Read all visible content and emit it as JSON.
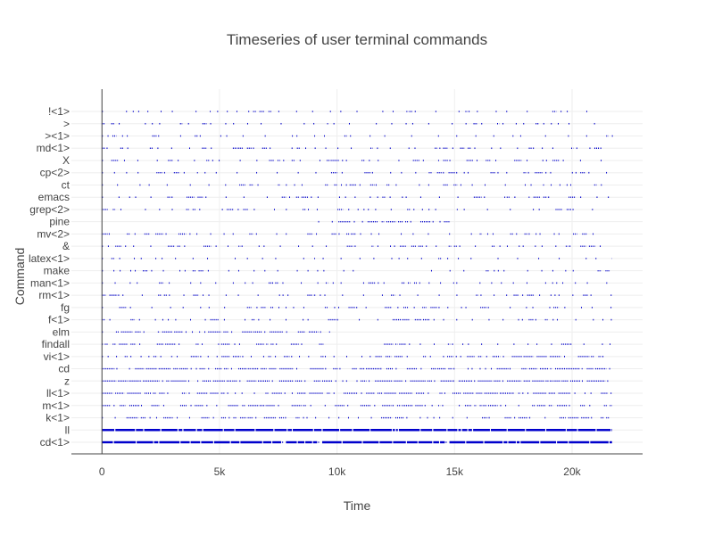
{
  "chart_data": {
    "type": "scatter",
    "title": "Timeseries of user terminal commands",
    "xlabel": "Time",
    "ylabel": "Command",
    "xlim": [
      -1300,
      23000
    ],
    "x_ticks": [
      0,
      5000,
      10000,
      15000,
      20000
    ],
    "x_tick_labels": [
      "0",
      "5k",
      "10k",
      "15k",
      "20k"
    ],
    "categories": [
      "cd<1>",
      "ll",
      "k<1>",
      "m<1>",
      "ll<1>",
      "z",
      "cd",
      "vi<1>",
      "findall",
      "elm",
      "f<1>",
      "fg",
      "rm<1>",
      "man<1>",
      "make",
      "latex<1>",
      "&",
      "mv<2>",
      "pine",
      "grep<2>",
      "emacs",
      "ct",
      "cp<2>",
      "X",
      "md<1>",
      "><1>",
      ">",
      "!<1>"
    ],
    "marker_color": "#0000cc",
    "grid": true,
    "legend": "none",
    "series": [
      {
        "command": "cd<1>",
        "active": [
          [
            0,
            21700
          ]
        ],
        "density": 0.98,
        "seed": 1
      },
      {
        "command": "ll",
        "active": [
          [
            0,
            21700
          ]
        ],
        "density": 0.97,
        "seed": 2
      },
      {
        "command": "k<1>",
        "active": [
          [
            0,
            21700
          ]
        ],
        "density": 0.55,
        "seed": 3
      },
      {
        "command": "m<1>",
        "active": [
          [
            0,
            21700
          ]
        ],
        "density": 0.5,
        "seed": 4
      },
      {
        "command": "ll<1>",
        "active": [
          [
            0,
            21700
          ]
        ],
        "density": 0.6,
        "seed": 5
      },
      {
        "command": "z",
        "active": [
          [
            0,
            21700
          ]
        ],
        "density": 0.75,
        "seed": 6
      },
      {
        "command": "cd",
        "active": [
          [
            0,
            21700
          ]
        ],
        "density": 0.6,
        "seed": 7
      },
      {
        "command": "vi<1>",
        "active": [
          [
            0,
            21700
          ]
        ],
        "density": 0.5,
        "seed": 8
      },
      {
        "command": "findall",
        "active": [
          [
            0,
            9500
          ],
          [
            12000,
            21700
          ]
        ],
        "density": 0.45,
        "seed": 9
      },
      {
        "command": "elm",
        "active": [
          [
            0,
            9700
          ]
        ],
        "density": 0.6,
        "seed": 10
      },
      {
        "command": "f<1>",
        "active": [
          [
            0,
            21700
          ]
        ],
        "density": 0.35,
        "seed": 11
      },
      {
        "command": "fg",
        "active": [
          [
            0,
            21700
          ]
        ],
        "density": 0.3,
        "seed": 12
      },
      {
        "command": "rm<1>",
        "active": [
          [
            0,
            21700
          ]
        ],
        "density": 0.35,
        "seed": 13
      },
      {
        "command": "man<1>",
        "active": [
          [
            0,
            21700
          ]
        ],
        "density": 0.3,
        "seed": 14
      },
      {
        "command": "make",
        "active": [
          [
            0,
            11000
          ],
          [
            14000,
            21700
          ]
        ],
        "density": 0.2,
        "seed": 15
      },
      {
        "command": "latex<1>",
        "active": [
          [
            0,
            21700
          ]
        ],
        "density": 0.12,
        "seed": 16
      },
      {
        "command": "&",
        "active": [
          [
            0,
            21700
          ]
        ],
        "density": 0.3,
        "seed": 17
      },
      {
        "command": "mv<2>",
        "active": [
          [
            0,
            21700
          ]
        ],
        "density": 0.3,
        "seed": 18
      },
      {
        "command": "pine",
        "active": [
          [
            9200,
            14800
          ]
        ],
        "density": 0.6,
        "seed": 19
      },
      {
        "command": "grep<2>",
        "active": [
          [
            0,
            21700
          ]
        ],
        "density": 0.25,
        "seed": 20
      },
      {
        "command": "emacs",
        "active": [
          [
            0,
            21700
          ]
        ],
        "density": 0.3,
        "seed": 21
      },
      {
        "command": "ct",
        "active": [
          [
            0,
            21700
          ]
        ],
        "density": 0.25,
        "seed": 22
      },
      {
        "command": "cp<2>",
        "active": [
          [
            0,
            21700
          ]
        ],
        "density": 0.3,
        "seed": 23
      },
      {
        "command": "X",
        "active": [
          [
            0,
            21700
          ]
        ],
        "density": 0.35,
        "seed": 24
      },
      {
        "command": "md<1>",
        "active": [
          [
            0,
            21700
          ]
        ],
        "density": 0.3,
        "seed": 25
      },
      {
        "command": "><1>",
        "active": [
          [
            0,
            21700
          ]
        ],
        "density": 0.15,
        "seed": 26
      },
      {
        "command": ">",
        "active": [
          [
            0,
            21000
          ]
        ],
        "density": 0.15,
        "seed": 27
      },
      {
        "command": "!<1>",
        "active": [
          [
            0,
            21000
          ]
        ],
        "density": 0.15,
        "seed": 28
      }
    ]
  }
}
